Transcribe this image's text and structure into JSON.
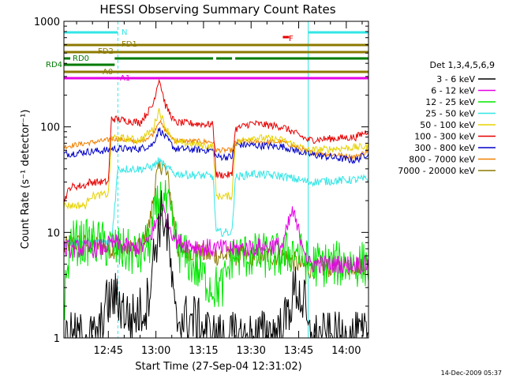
{
  "chart_data": {
    "type": "line",
    "title": "HESSI Observing Summary Count Rates",
    "xlabel": "Start Time (27-Sep-04 12:31:02)",
    "ylabel": "Count Rate (s⁻¹ detector⁻¹)",
    "x_tick_labels": [
      "12:45",
      "13:00",
      "13:15",
      "13:30",
      "13:45",
      "14:00"
    ],
    "y_tick_labels": [
      "1",
      "10",
      "100",
      "1000"
    ],
    "y_scale": "log",
    "ylim": [
      1,
      1000
    ],
    "xlim": [
      "12:31",
      "14:07"
    ],
    "legend_title": "Det 1,3,4,5,6,9",
    "legend_placement": "right",
    "timestamp": "14-Dec-2009 05:37",
    "flag_bars": [
      {
        "label": "N",
        "color": "#33e6e6",
        "segments": [
          [
            "12:31",
            "12:48"
          ],
          [
            "13:48",
            "14:07"
          ]
        ]
      },
      {
        "label": "F",
        "color": "#e60000",
        "segments": [
          [
            "13:40",
            "13:42"
          ]
        ]
      },
      {
        "label": "FD1",
        "color": "#8c7a00",
        "segments": [
          [
            "12:31",
            "14:07"
          ]
        ]
      },
      {
        "label": "FD2",
        "color": "#8c7a00",
        "segments": [
          [
            "12:31",
            "14:07"
          ]
        ]
      },
      {
        "label": "RD0",
        "color": "#007a00",
        "segments": [
          [
            "12:31",
            "12:33"
          ],
          [
            "12:47",
            "13:18"
          ],
          [
            "13:19",
            "13:24"
          ],
          [
            "13:25",
            "14:07"
          ]
        ]
      },
      {
        "label": "RD4",
        "color": "#007a00",
        "segments": [
          [
            "12:31",
            "12:47"
          ]
        ]
      },
      {
        "label": "A0",
        "color": "#8c7a00",
        "segments": [
          [
            "12:31",
            "14:07"
          ]
        ]
      },
      {
        "label": "A1",
        "color": "#e600e6",
        "segments": [
          [
            "12:31",
            "14:07"
          ]
        ]
      }
    ],
    "series": [
      {
        "name": "3 - 6 keV",
        "color": "#000000"
      },
      {
        "name": "6 - 12 keV",
        "color": "#e600e6"
      },
      {
        "name": "12 - 25 keV",
        "color": "#00e600"
      },
      {
        "name": "25 - 50 keV",
        "color": "#33e6e6"
      },
      {
        "name": "50 - 100 keV",
        "color": "#e6d200"
      },
      {
        "name": "100 - 300 keV",
        "color": "#e60000"
      },
      {
        "name": "300 - 800 keV",
        "color": "#0000c8"
      },
      {
        "name": "800 - 7000 keV",
        "color": "#f08000"
      },
      {
        "name": "7000 - 20000 keV",
        "color": "#8c7a00"
      }
    ],
    "keypoints": {
      "3 - 6 keV": [
        [
          "12:31",
          1
        ],
        [
          "12:42",
          1
        ],
        [
          "12:44",
          2
        ],
        [
          "12:47",
          2.5
        ],
        [
          "12:52",
          1.5
        ],
        [
          "12:57",
          2
        ],
        [
          "13:00",
          8
        ],
        [
          "13:02",
          16
        ],
        [
          "13:04",
          8
        ],
        [
          "13:06",
          1.5
        ],
        [
          "13:12",
          1.5
        ],
        [
          "13:18",
          1
        ],
        [
          "13:30",
          1
        ],
        [
          "13:40",
          1.2
        ],
        [
          "13:44",
          3
        ],
        [
          "13:47",
          2
        ],
        [
          "13:48",
          1
        ],
        [
          "14:07",
          1
        ]
      ],
      "6 - 12 keV": [
        [
          "12:31",
          7
        ],
        [
          "12:42",
          7
        ],
        [
          "12:47",
          8
        ],
        [
          "12:52",
          7
        ],
        [
          "12:57",
          7.5
        ],
        [
          "13:00",
          12
        ],
        [
          "13:02",
          17
        ],
        [
          "13:04",
          12
        ],
        [
          "13:07",
          8
        ],
        [
          "13:18",
          7
        ],
        [
          "13:21",
          7
        ],
        [
          "13:25",
          7
        ],
        [
          "13:40",
          7.5
        ],
        [
          "13:43",
          16
        ],
        [
          "13:45",
          10
        ],
        [
          "13:47",
          7
        ],
        [
          "13:48",
          5
        ],
        [
          "14:07",
          5
        ]
      ],
      "12 - 25 keV": [
        [
          "12:31",
          2
        ],
        [
          "12:33",
          8
        ],
        [
          "12:42",
          8
        ],
        [
          "12:47",
          7
        ],
        [
          "12:55",
          6
        ],
        [
          "12:58",
          8
        ],
        [
          "13:00",
          16
        ],
        [
          "13:02",
          22
        ],
        [
          "13:04",
          16
        ],
        [
          "13:07",
          7
        ],
        [
          "13:18",
          3
        ],
        [
          "13:21",
          3
        ],
        [
          "13:24",
          6
        ],
        [
          "13:40",
          6
        ],
        [
          "13:44",
          7
        ],
        [
          "13:48",
          5
        ],
        [
          "14:07",
          5
        ]
      ],
      "25 - 50 keV": [
        [
          "12:31",
          8
        ],
        [
          "12:33",
          8
        ],
        [
          "12:42",
          8
        ],
        [
          "12:46",
          8
        ],
        [
          "12:48",
          40
        ],
        [
          "12:55",
          40
        ],
        [
          "12:59",
          42
        ],
        [
          "13:01",
          48
        ],
        [
          "13:03",
          42
        ],
        [
          "13:06",
          36
        ],
        [
          "13:18",
          34
        ],
        [
          "13:19",
          10
        ],
        [
          "13:24",
          10
        ],
        [
          "13:25",
          33
        ],
        [
          "13:30",
          36
        ],
        [
          "13:40",
          34
        ],
        [
          "13:48",
          30
        ],
        [
          "14:07",
          32
        ]
      ],
      "50 - 100 keV": [
        [
          "12:31",
          18
        ],
        [
          "12:38",
          18
        ],
        [
          "12:39",
          22
        ],
        [
          "12:45",
          23
        ],
        [
          "12:46",
          80
        ],
        [
          "12:55",
          75
        ],
        [
          "12:59",
          95
        ],
        [
          "13:01",
          145
        ],
        [
          "13:03",
          100
        ],
        [
          "13:06",
          72
        ],
        [
          "13:18",
          65
        ],
        [
          "13:19",
          22
        ],
        [
          "13:24",
          22
        ],
        [
          "13:25",
          70
        ],
        [
          "13:30",
          80
        ],
        [
          "13:40",
          75
        ],
        [
          "13:48",
          60
        ],
        [
          "14:07",
          65
        ]
      ],
      "100 - 300 keV": [
        [
          "12:31",
          20
        ],
        [
          "12:33",
          27
        ],
        [
          "12:38",
          28
        ],
        [
          "12:39",
          30
        ],
        [
          "12:45",
          30
        ],
        [
          "12:46",
          120
        ],
        [
          "12:55",
          110
        ],
        [
          "12:59",
          160
        ],
        [
          "13:01",
          290
        ],
        [
          "13:03",
          160
        ],
        [
          "13:06",
          110
        ],
        [
          "13:18",
          105
        ],
        [
          "13:19",
          35
        ],
        [
          "13:24",
          35
        ],
        [
          "13:25",
          95
        ],
        [
          "13:30",
          108
        ],
        [
          "13:40",
          100
        ],
        [
          "13:48",
          75
        ],
        [
          "14:03",
          80
        ],
        [
          "14:07",
          92
        ]
      ],
      "300 - 800 keV": [
        [
          "12:31",
          55
        ],
        [
          "12:38",
          58
        ],
        [
          "12:45",
          60
        ],
        [
          "12:46",
          62
        ],
        [
          "12:55",
          62
        ],
        [
          "12:59",
          68
        ],
        [
          "13:01",
          95
        ],
        [
          "13:03",
          80
        ],
        [
          "13:06",
          62
        ],
        [
          "13:18",
          60
        ],
        [
          "13:19",
          52
        ],
        [
          "13:24",
          52
        ],
        [
          "13:25",
          68
        ],
        [
          "13:40",
          65
        ],
        [
          "13:48",
          55
        ],
        [
          "14:03",
          48
        ],
        [
          "14:07",
          57
        ]
      ],
      "800 - 7000 keV": [
        [
          "12:31",
          65
        ],
        [
          "12:38",
          70
        ],
        [
          "12:45",
          75
        ],
        [
          "12:46",
          78
        ],
        [
          "12:55",
          72
        ],
        [
          "12:59",
          85
        ],
        [
          "13:01",
          115
        ],
        [
          "13:03",
          92
        ],
        [
          "13:06",
          74
        ],
        [
          "13:18",
          72
        ],
        [
          "13:19",
          60
        ],
        [
          "13:24",
          60
        ],
        [
          "13:25",
          72
        ],
        [
          "13:40",
          72
        ],
        [
          "13:48",
          58
        ],
        [
          "14:03",
          52
        ],
        [
          "14:07",
          60
        ]
      ],
      "7000 - 20000 keV": [
        [
          "12:31",
          7
        ],
        [
          "12:33",
          8
        ],
        [
          "12:42",
          7.5
        ],
        [
          "12:47",
          7
        ],
        [
          "12:55",
          7
        ],
        [
          "12:58",
          12
        ],
        [
          "13:00",
          32
        ],
        [
          "13:02",
          46
        ],
        [
          "13:04",
          30
        ],
        [
          "13:07",
          7
        ],
        [
          "13:18",
          6
        ],
        [
          "13:21",
          6
        ],
        [
          "13:25",
          6
        ],
        [
          "13:40",
          6
        ],
        [
          "13:48",
          4.5
        ],
        [
          "14:07",
          5
        ]
      ]
    }
  }
}
